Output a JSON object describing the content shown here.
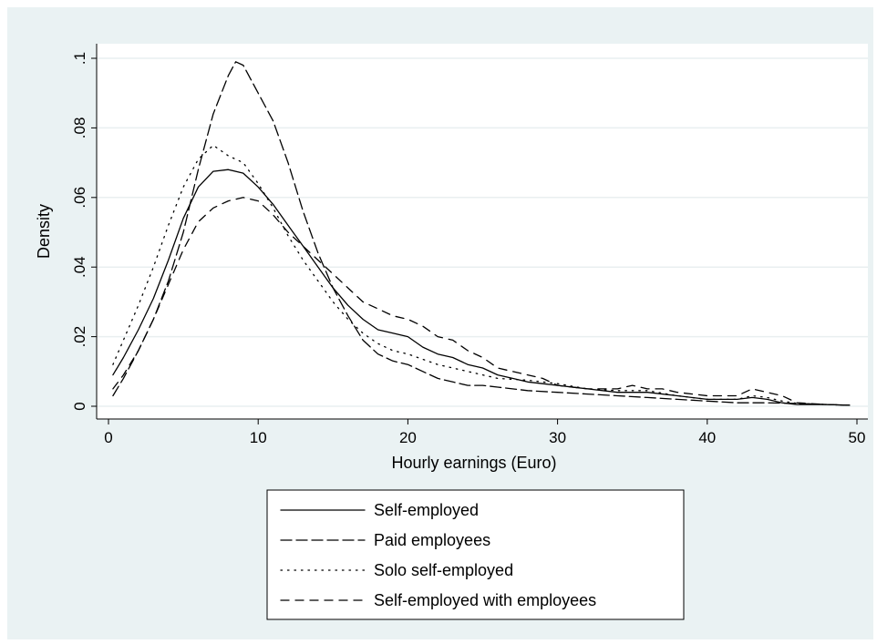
{
  "chart_data": {
    "type": "line",
    "xlabel": "Hourly earnings (Euro)",
    "ylabel": "Density",
    "xlim": [
      0,
      50
    ],
    "ylim": [
      0,
      0.1
    ],
    "x_ticks": [
      0,
      10,
      20,
      30,
      40,
      50
    ],
    "x_tick_labels": [
      "0",
      "10",
      "20",
      "30",
      "40",
      "50"
    ],
    "y_ticks": [
      0,
      0.02,
      0.04,
      0.06,
      0.08,
      0.1
    ],
    "y_tick_labels": [
      "0",
      ".02",
      ".04",
      ".06",
      ".08",
      ".1"
    ],
    "grid": "horizontal",
    "legend_position": "bottom",
    "colors": {
      "background": "#eaf2f3",
      "plot": "#ffffff",
      "line": "#000000"
    },
    "series": [
      {
        "name": "Self-employed",
        "style": "solid",
        "x": [
          0.3,
          1,
          2,
          3,
          4,
          5,
          6,
          7,
          8,
          9,
          10,
          11,
          12,
          13,
          14,
          15,
          16,
          17,
          18,
          19,
          20,
          21,
          22,
          23,
          24,
          25,
          26,
          27,
          28,
          29,
          30,
          32,
          34,
          36,
          38,
          40,
          42,
          43,
          44,
          45,
          46,
          48,
          49.5
        ],
        "y": [
          0.009,
          0.014,
          0.022,
          0.031,
          0.042,
          0.054,
          0.063,
          0.0675,
          0.068,
          0.067,
          0.063,
          0.058,
          0.052,
          0.046,
          0.04,
          0.034,
          0.029,
          0.025,
          0.022,
          0.021,
          0.02,
          0.017,
          0.015,
          0.014,
          0.012,
          0.011,
          0.009,
          0.008,
          0.007,
          0.0065,
          0.006,
          0.005,
          0.004,
          0.004,
          0.003,
          0.002,
          0.002,
          0.0025,
          0.002,
          0.001,
          0.0005,
          0.0005,
          0.0003
        ]
      },
      {
        "name": "Paid employees",
        "style": "longdash",
        "x": [
          0.3,
          1,
          2,
          3,
          4,
          5,
          6,
          7,
          8,
          8.5,
          9,
          10,
          11,
          12,
          13,
          14,
          15,
          16,
          17,
          18,
          19,
          20,
          21,
          22,
          23,
          24,
          25,
          26,
          28,
          30,
          32,
          34,
          36,
          38,
          40,
          42,
          44,
          46,
          48,
          49.5
        ],
        "y": [
          0.003,
          0.008,
          0.016,
          0.025,
          0.036,
          0.05,
          0.068,
          0.084,
          0.095,
          0.099,
          0.098,
          0.09,
          0.082,
          0.07,
          0.056,
          0.044,
          0.034,
          0.026,
          0.019,
          0.015,
          0.013,
          0.012,
          0.01,
          0.008,
          0.007,
          0.006,
          0.006,
          0.0055,
          0.0045,
          0.004,
          0.0035,
          0.003,
          0.0025,
          0.002,
          0.0015,
          0.001,
          0.001,
          0.0008,
          0.0005,
          0.0003
        ]
      },
      {
        "name": "Solo self-employed",
        "style": "dotted",
        "x": [
          0.3,
          1,
          2,
          3,
          4,
          5,
          6,
          7,
          8,
          9,
          10,
          11,
          12,
          13,
          14,
          15,
          16,
          17,
          18,
          19,
          20,
          22,
          24,
          26,
          28,
          30,
          32,
          34,
          36,
          38,
          40,
          42,
          43,
          44,
          45,
          46,
          48,
          49.5
        ],
        "y": [
          0.012,
          0.019,
          0.029,
          0.04,
          0.052,
          0.063,
          0.071,
          0.075,
          0.072,
          0.07,
          0.064,
          0.057,
          0.049,
          0.042,
          0.036,
          0.03,
          0.025,
          0.021,
          0.018,
          0.016,
          0.015,
          0.012,
          0.01,
          0.008,
          0.0075,
          0.0065,
          0.005,
          0.0045,
          0.0045,
          0.003,
          0.002,
          0.002,
          0.003,
          0.0025,
          0.0015,
          0.0008,
          0.0005,
          0.0003
        ]
      },
      {
        "name": "Self-employed with employees",
        "style": "dash",
        "x": [
          0.3,
          1,
          2,
          3,
          4,
          5,
          6,
          7,
          8,
          9,
          10,
          11,
          12,
          13,
          14,
          15,
          16,
          17,
          18,
          19,
          20,
          21,
          22,
          23,
          24,
          25,
          26,
          27,
          28,
          29,
          30,
          32,
          34,
          35,
          36,
          37,
          38,
          40,
          42,
          43,
          44,
          45,
          46,
          48,
          49.5
        ],
        "y": [
          0.005,
          0.009,
          0.016,
          0.025,
          0.035,
          0.045,
          0.053,
          0.057,
          0.059,
          0.06,
          0.059,
          0.055,
          0.05,
          0.046,
          0.042,
          0.038,
          0.034,
          0.03,
          0.028,
          0.026,
          0.025,
          0.023,
          0.02,
          0.019,
          0.016,
          0.014,
          0.011,
          0.01,
          0.009,
          0.008,
          0.006,
          0.005,
          0.005,
          0.006,
          0.005,
          0.005,
          0.004,
          0.003,
          0.003,
          0.005,
          0.004,
          0.003,
          0.001,
          0.0005,
          0.0003
        ]
      }
    ]
  }
}
